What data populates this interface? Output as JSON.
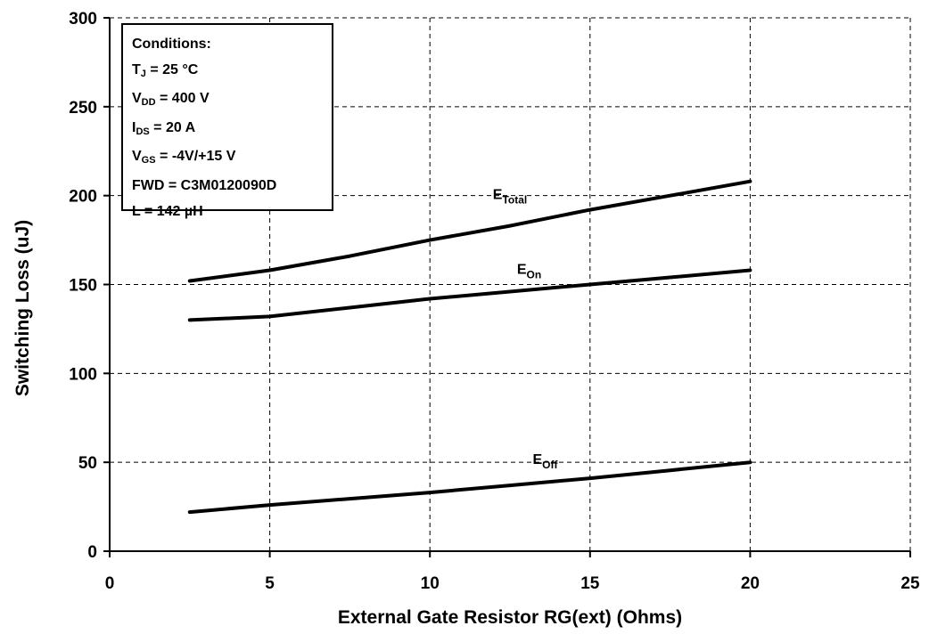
{
  "conditions": {
    "title": "Conditions:",
    "lines": [
      {
        "main": "T",
        "sub": "J",
        "rest": " = 25 °C"
      },
      {
        "main": "V",
        "sub": "DD",
        "rest": " = 400 V"
      },
      {
        "main": "I",
        "sub": "DS",
        "rest": " = 20 A"
      },
      {
        "main": "V",
        "sub": "GS",
        "rest": " = -4V/+15 V"
      },
      {
        "main": "FWD = C3M0120090D",
        "sub": "",
        "rest": ""
      },
      {
        "main": "L = 142 µH",
        "sub": "",
        "rest": ""
      }
    ]
  },
  "chart_data": {
    "type": "line",
    "xlabel": "External Gate Resistor RG(ext) (Ohms)",
    "ylabel": "Switching Loss (uJ)",
    "xlim": [
      0,
      25
    ],
    "ylim": [
      0,
      300
    ],
    "xticks": [
      0,
      5,
      10,
      15,
      20,
      25
    ],
    "yticks": [
      0,
      50,
      100,
      150,
      200,
      250,
      300
    ],
    "grid": true,
    "series": [
      {
        "name": "E",
        "name_sub": "Total",
        "color": "#000000",
        "x": [
          2.5,
          5,
          7.5,
          10,
          12.5,
          15,
          17.5,
          20
        ],
        "y": [
          152,
          158,
          166,
          175,
          183,
          192,
          200,
          208
        ],
        "label_at": [
          12.5,
          198
        ]
      },
      {
        "name": "E",
        "name_sub": "On",
        "color": "#000000",
        "x": [
          2.5,
          5,
          7.5,
          10,
          12.5,
          15,
          17.5,
          20
        ],
        "y": [
          130,
          132,
          137,
          142,
          146,
          150,
          154,
          158
        ],
        "label_at": [
          13.1,
          156
        ]
      },
      {
        "name": "E",
        "name_sub": "Off",
        "color": "#000000",
        "x": [
          2.5,
          5,
          7.5,
          10,
          12.5,
          15,
          17.5,
          20
        ],
        "y": [
          22,
          26,
          29.5,
          33,
          37,
          41,
          45.5,
          50
        ],
        "label_at": [
          13.6,
          49
        ]
      }
    ]
  }
}
